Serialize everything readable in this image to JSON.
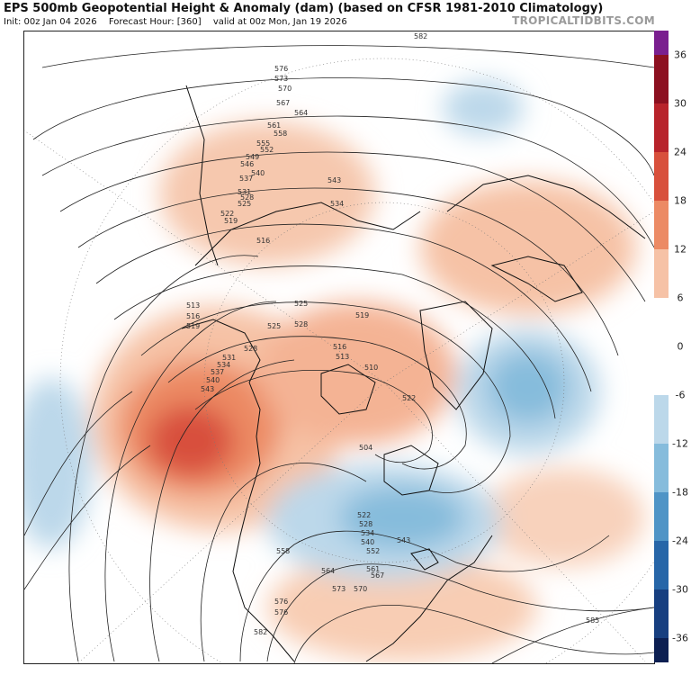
{
  "header": {
    "title": "EPS 500mb Geopotential Height & Anomaly (dam) (based on CFSR 1981-2010 Climatology)",
    "init": "Init: 00z Jan 04 2026",
    "forecast_hour": "Forecast Hour: [360]",
    "valid": "valid at 00z Mon, Jan 19 2026",
    "brand": "TROPICALTIDBITS.COM"
  },
  "colorbar": {
    "ticks": [
      "36",
      "30",
      "24",
      "18",
      "12",
      "6",
      "0",
      "-6",
      "-12",
      "-18",
      "-24",
      "-30",
      "-36"
    ],
    "tick_values": [
      36,
      30,
      24,
      18,
      12,
      6,
      0,
      -6,
      -12,
      -18,
      -24,
      -30,
      -36
    ],
    "range": [
      -39,
      39
    ],
    "bands": [
      {
        "from": 36,
        "to": 39,
        "color": "#7a1f8f"
      },
      {
        "from": 30,
        "to": 36,
        "color": "#8c1020"
      },
      {
        "from": 24,
        "to": 30,
        "color": "#b8232b"
      },
      {
        "from": 18,
        "to": 24,
        "color": "#d8503c"
      },
      {
        "from": 12,
        "to": 18,
        "color": "#ec8a64"
      },
      {
        "from": 6,
        "to": 12,
        "color": "#f6c2a6"
      },
      {
        "from": -6,
        "to": 6,
        "color": "#ffffff"
      },
      {
        "from": -12,
        "to": -6,
        "color": "#bcd8ea"
      },
      {
        "from": -18,
        "to": -12,
        "color": "#86bcdc"
      },
      {
        "from": -24,
        "to": -18,
        "color": "#4f94c6"
      },
      {
        "from": -30,
        "to": -24,
        "color": "#2766a8"
      },
      {
        "from": -36,
        "to": -30,
        "color": "#173f80"
      },
      {
        "from": -39,
        "to": -36,
        "color": "#0c1f52"
      }
    ]
  },
  "map": {
    "contour_labels": [
      "582",
      "576",
      "573",
      "570",
      "567",
      "564",
      "561",
      "558",
      "555",
      "552",
      "549",
      "546",
      "543",
      "540",
      "537",
      "534",
      "531",
      "528",
      "525",
      "522",
      "519",
      "516",
      "513",
      "510",
      "504",
      "585"
    ],
    "anomaly_colors": {
      "pos_light": "#f8d2bc",
      "pos_mid": "#eea07e",
      "pos_strong": "#d8603f",
      "neg_light": "#c6deee",
      "neg_mid": "#8fc0df",
      "neg_strong": "#5a9ccc"
    }
  }
}
